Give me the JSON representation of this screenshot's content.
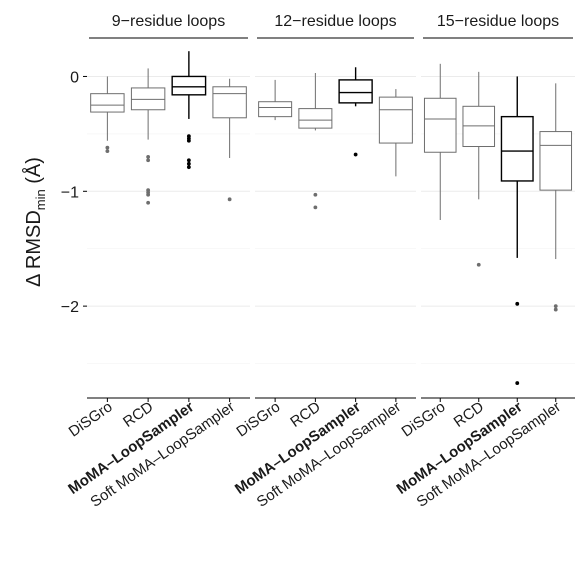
{
  "chart_data": {
    "type": "boxplot",
    "ylabel": "Δ RMSD",
    "ylabel_subscript": "min",
    "ylabel_unit": "(Å)",
    "ylim": [
      -2.8,
      0.3
    ],
    "yticks": [
      0,
      -1,
      -2
    ],
    "ytick_labels": [
      "0",
      "−1",
      "−2"
    ],
    "grid": true,
    "colors": {
      "box_line": "#6e6e6e",
      "highlight_line": "#000000",
      "grid": "#ebebeb"
    },
    "categories": [
      "DiSGro",
      "RCD",
      "MoMA–LoopSampler",
      "Soft MoMA–LoopSampler"
    ],
    "bold_category": "MoMA–LoopSampler",
    "panels": [
      {
        "title": "9−residue loops",
        "boxes": [
          {
            "method": "DiSGro",
            "q1": -0.31,
            "median": -0.25,
            "q3": -0.15,
            "whisker_low": -0.56,
            "whisker_high": 0.0,
            "outliers": [
              -0.62,
              -0.65
            ]
          },
          {
            "method": "RCD",
            "q1": -0.29,
            "median": -0.2,
            "q3": -0.1,
            "whisker_low": -0.55,
            "whisker_high": 0.07,
            "outliers": [
              -0.7,
              -0.73,
              -0.99,
              -1.01,
              -1.03,
              -1.1
            ]
          },
          {
            "method": "MoMA–LoopSampler",
            "q1": -0.16,
            "median": -0.09,
            "q3": 0.0,
            "whisker_low": -0.37,
            "whisker_high": 0.22,
            "outliers": [
              -0.52,
              -0.54,
              -0.56,
              -0.73,
              -0.76,
              -0.79
            ]
          },
          {
            "method": "Soft MoMA–LoopSampler",
            "q1": -0.36,
            "median": -0.15,
            "q3": -0.09,
            "whisker_low": -0.71,
            "whisker_high": -0.02,
            "outliers": [
              -1.07
            ]
          }
        ]
      },
      {
        "title": "12−residue loops",
        "boxes": [
          {
            "method": "DiSGro",
            "q1": -0.35,
            "median": -0.27,
            "q3": -0.22,
            "whisker_low": -0.38,
            "whisker_high": -0.03,
            "outliers": []
          },
          {
            "method": "RCD",
            "q1": -0.45,
            "median": -0.38,
            "q3": -0.28,
            "whisker_low": -0.47,
            "whisker_high": 0.03,
            "outliers": [
              -1.03,
              -1.14
            ]
          },
          {
            "method": "MoMA–LoopSampler",
            "q1": -0.23,
            "median": -0.14,
            "q3": -0.03,
            "whisker_low": -0.26,
            "whisker_high": 0.08,
            "outliers": [
              -0.68
            ]
          },
          {
            "method": "Soft MoMA–LoopSampler",
            "q1": -0.58,
            "median": -0.29,
            "q3": -0.18,
            "whisker_low": -0.87,
            "whisker_high": -0.11,
            "outliers": []
          }
        ]
      },
      {
        "title": "15−residue loops",
        "boxes": [
          {
            "method": "DiSGro",
            "q1": -0.66,
            "median": -0.37,
            "q3": -0.19,
            "whisker_low": -1.25,
            "whisker_high": 0.11,
            "outliers": []
          },
          {
            "method": "RCD",
            "q1": -0.61,
            "median": -0.43,
            "q3": -0.26,
            "whisker_low": -1.07,
            "whisker_high": 0.04,
            "outliers": [
              -1.64
            ]
          },
          {
            "method": "MoMA–LoopSampler",
            "q1": -0.91,
            "median": -0.65,
            "q3": -0.35,
            "whisker_low": -1.58,
            "whisker_high": 0.0,
            "outliers": [
              -1.98,
              -2.67
            ]
          },
          {
            "method": "Soft MoMA–LoopSampler",
            "q1": -0.99,
            "median": -0.6,
            "q3": -0.48,
            "whisker_low": -1.59,
            "whisker_high": -0.06,
            "outliers": [
              -2.0,
              -2.03
            ]
          }
        ]
      }
    ]
  }
}
